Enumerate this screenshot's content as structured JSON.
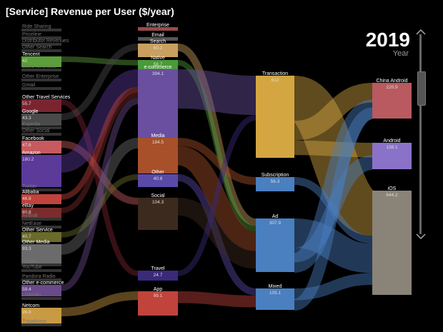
{
  "title": "[Service] Revenue per User ($/year)",
  "year_control": {
    "year": "2019",
    "label": "Year"
  },
  "chart_data": {
    "type": "sankey",
    "title": "[Service] Revenue per User ($/year)",
    "year": "2019",
    "levels": [
      {
        "name": "service",
        "nodes": [
          {
            "label": "Ride Sharing",
            "value": "",
            "color": "#555555",
            "faded": true
          },
          {
            "label": "Priceline",
            "value": "",
            "color": "#555555",
            "faded": true
          },
          {
            "label": "Distributor Revenues",
            "value": "",
            "color": "#555555",
            "faded": true
          },
          {
            "label": "Other Search",
            "value": "",
            "color": "#555555",
            "faded": true
          },
          {
            "label": "Tencent",
            "value": "42",
            "color": "#5d9e3c"
          },
          {
            "label": "Store revenues",
            "value": "",
            "color": "#555555",
            "faded": true
          },
          {
            "label": "Other Enterprise",
            "value": "",
            "color": "#555555",
            "faded": true
          },
          {
            "label": "Gmail",
            "value": "",
            "color": "#555555",
            "faded": true
          },
          {
            "label": "Other Travel Services",
            "value": "55.7",
            "color": "#7a2430"
          },
          {
            "label": "Google",
            "value": "43.3",
            "color": "#4a4a4a"
          },
          {
            "label": "Expedia",
            "value": "",
            "color": "#555555",
            "faded": true
          },
          {
            "label": "Other Social",
            "value": "",
            "color": "#555555",
            "faded": true
          },
          {
            "label": "Facebook",
            "value": "47.6",
            "color": "#c65a5f"
          },
          {
            "label": "Amazon",
            "value": "180.2",
            "color": "#5b3a9a"
          },
          {
            "label": "Twitter",
            "value": "",
            "color": "#555555",
            "faded": true
          },
          {
            "label": "Alibaba",
            "value": "46.8",
            "color": "#c0433c"
          },
          {
            "label": "eBay",
            "value": "80.8",
            "color": "#7b2b2b"
          },
          {
            "label": "AirBnB",
            "value": "",
            "color": "#555555",
            "faded": true
          },
          {
            "label": "NetEase",
            "value": "",
            "color": "#555555",
            "faded": true
          },
          {
            "label": "Other Service",
            "value": "40.7",
            "color": "#6a6a2a"
          },
          {
            "label": "Other Media",
            "value": "93.3",
            "color": "#6b6b6b"
          },
          {
            "label": "Yahoo",
            "value": "",
            "color": "#555555",
            "faded": true
          },
          {
            "label": "YouTube",
            "value": "",
            "color": "#555555",
            "faded": true
          },
          {
            "label": "Pandora Radio",
            "value": "",
            "color": "#555555",
            "faded": true
          },
          {
            "label": "Other e-commerce",
            "value": "59.4",
            "color": "#6a4a8a"
          },
          {
            "label": "Linkedin",
            "value": "",
            "color": "#555555",
            "faded": true
          },
          {
            "label": "Netcom",
            "value": "96.8",
            "color": "#c99a44"
          },
          {
            "label": "Tripadvisor",
            "value": "",
            "color": "#555555",
            "faded": true
          }
        ]
      },
      {
        "name": "category",
        "nodes": [
          {
            "label": "Enterprise",
            "value": "",
            "color": "#9a4a4a"
          },
          {
            "label": "Email",
            "value": "",
            "color": "#555555"
          },
          {
            "label": "Search",
            "value": "60.2",
            "color": "#c9a060"
          },
          {
            "label": "Native",
            "value": "56.7",
            "color": "#4a9a3a"
          },
          {
            "label": "e-commerce",
            "value": "394.1",
            "color": "#6a4fa0"
          },
          {
            "label": "Media",
            "value": "184.5",
            "color": "#a8502a"
          },
          {
            "label": "Other",
            "value": "40.8",
            "color": "#5a4aa8"
          },
          {
            "label": "Social",
            "value": "104.3",
            "color": "#3d2a1e"
          },
          {
            "label": "Travel",
            "value": "24.7",
            "color": "#3a2a7a"
          },
          {
            "label": "App",
            "value": "99.1",
            "color": "#c0433c"
          }
        ]
      },
      {
        "name": "model",
        "nodes": [
          {
            "label": "Transaction",
            "value": "612",
            "color": "#d4a642"
          },
          {
            "label": "Subscription",
            "value": "56.3",
            "color": "#4a7fc0"
          },
          {
            "label": "Ad",
            "value": "307.9",
            "color": "#4a7fc0"
          },
          {
            "label": "Mixed",
            "value": "105.1",
            "color": "#4a7fc0"
          }
        ]
      },
      {
        "name": "platform",
        "nodes": [
          {
            "label": "China Android",
            "value": "220.9",
            "color": "#b85a60"
          },
          {
            "label": "Android",
            "value": "138.1",
            "color": "#8a72c8"
          },
          {
            "label": "iOS",
            "value": "644.2",
            "color": "#8a8378"
          }
        ]
      }
    ],
    "links": [
      {
        "source": "Tencent",
        "target": "Native"
      },
      {
        "source": "Other Travel Services",
        "target": "Travel"
      },
      {
        "source": "Google",
        "target": "Search"
      },
      {
        "source": "Facebook",
        "target": "Social"
      },
      {
        "source": "Amazon",
        "target": "e-commerce"
      },
      {
        "source": "Alibaba",
        "target": "e-commerce"
      },
      {
        "source": "eBay",
        "target": "e-commerce"
      },
      {
        "source": "Other Service",
        "target": "Other"
      },
      {
        "source": "Other Media",
        "target": "Media"
      },
      {
        "source": "Other e-commerce",
        "target": "e-commerce"
      },
      {
        "source": "Netcom",
        "target": "App"
      },
      {
        "source": "Search",
        "target": "Ad"
      },
      {
        "source": "Native",
        "target": "Ad"
      },
      {
        "source": "e-commerce",
        "target": "Transaction"
      },
      {
        "source": "Media",
        "target": "Subscription"
      },
      {
        "source": "Media",
        "target": "Ad"
      },
      {
        "source": "Other",
        "target": "Mixed"
      },
      {
        "source": "Social",
        "target": "Ad"
      },
      {
        "source": "Travel",
        "target": "Transaction"
      },
      {
        "source": "App",
        "target": "Mixed"
      },
      {
        "source": "Transaction",
        "target": "iOS"
      },
      {
        "source": "Transaction",
        "target": "China Android"
      },
      {
        "source": "Transaction",
        "target": "Android"
      },
      {
        "source": "Subscription",
        "target": "iOS"
      },
      {
        "source": "Ad",
        "target": "iOS"
      },
      {
        "source": "Ad",
        "target": "Android"
      },
      {
        "source": "Ad",
        "target": "China Android"
      },
      {
        "source": "Mixed",
        "target": "iOS"
      },
      {
        "source": "Mixed",
        "target": "China Android"
      }
    ]
  }
}
